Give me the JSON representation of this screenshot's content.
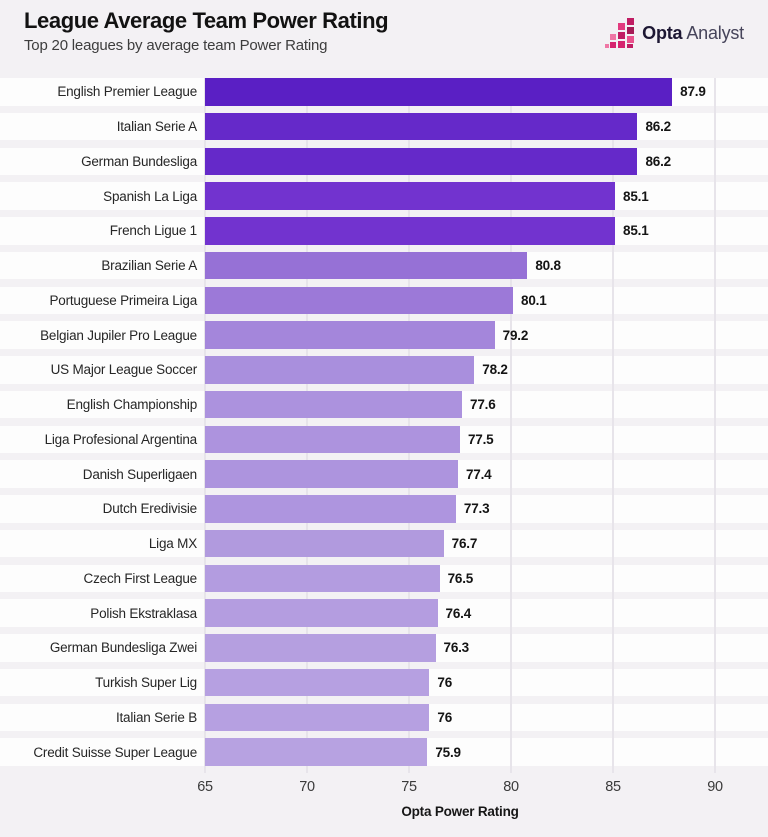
{
  "header": {
    "title": "League Average Team Power Rating",
    "subtitle": "Top 20 leagues by average team Power Rating",
    "logo": {
      "brand": "Opta",
      "product": "Analyst"
    }
  },
  "chart_data": {
    "type": "bar",
    "orientation": "horizontal",
    "title": "League Average Team Power Rating",
    "subtitle": "Top 20 leagues by average team Power Rating",
    "xlabel": "Opta Power Rating",
    "xlim": [
      65,
      90
    ],
    "xticks": [
      65,
      70,
      75,
      80,
      85,
      90
    ],
    "grid": true,
    "legend": false,
    "categories": [
      "English Premier League",
      "Italian Serie A",
      "German Bundesliga",
      "Spanish La Liga",
      "French Ligue 1",
      "Brazilian Serie A",
      "Portuguese Primeira Liga",
      "Belgian Jupiler Pro League",
      "US Major League Soccer",
      "English Championship",
      "Liga Profesional Argentina",
      "Danish Superligaen",
      "Dutch Eredivisie",
      "Liga MX",
      "Czech First League",
      "Polish Ekstraklasa",
      "German Bundesliga Zwei",
      "Turkish Super Lig",
      "Italian Serie B",
      "Credit Suisse Super League"
    ],
    "values": [
      87.9,
      86.2,
      86.2,
      85.1,
      85.1,
      80.8,
      80.1,
      79.2,
      78.2,
      77.6,
      77.5,
      77.4,
      77.3,
      76.7,
      76.5,
      76.4,
      76.3,
      76,
      76,
      75.9
    ],
    "value_labels": [
      "87.9",
      "86.2",
      "86.2",
      "85.1",
      "85.1",
      "80.8",
      "80.1",
      "79.2",
      "78.2",
      "77.6",
      "77.5",
      "77.4",
      "77.3",
      "76.7",
      "76.5",
      "76.4",
      "76.3",
      "76",
      "76",
      "75.9"
    ],
    "bar_colors": [
      "#5a1fc4",
      "#6529c9",
      "#6529c9",
      "#7233cf",
      "#7233cf",
      "#9671d6",
      "#9c79d8",
      "#a486db",
      "#a98fdd",
      "#ac92de",
      "#ad93de",
      "#ad94de",
      "#ae95df",
      "#b19ade",
      "#b39ce0",
      "#b49de0",
      "#b59fe0",
      "#b6a0e1",
      "#b6a0e1",
      "#b7a2e1"
    ]
  },
  "colors": {
    "background": "#f3f1f4",
    "stripe": "#ffffff",
    "gridline": "#e7e4ea",
    "accent_dark": "#5a1fc4",
    "accent_light": "#b7a2e1",
    "logo_pink": "#d6246f"
  }
}
